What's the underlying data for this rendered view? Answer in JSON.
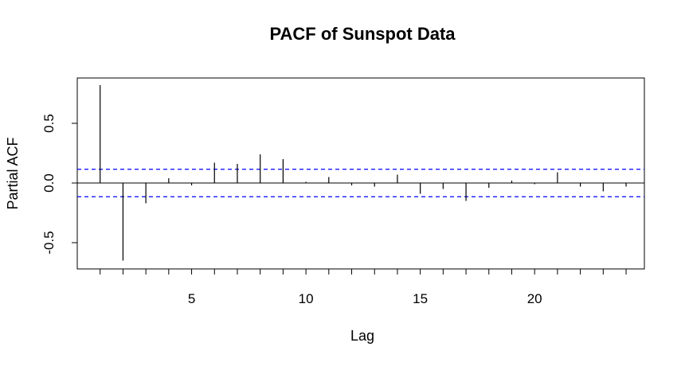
{
  "chart_data": {
    "type": "bar",
    "title": "PACF of Sunspot Data",
    "xlabel": "Lag",
    "ylabel": "Partial ACF",
    "xlim": [
      0,
      24.8
    ],
    "ylim": [
      -0.72,
      0.88
    ],
    "x_ticks": [
      5,
      10,
      15,
      20
    ],
    "x_tick_labels": [
      "5",
      "10",
      "15",
      "20"
    ],
    "y_ticks": [
      -0.5,
      0.0,
      0.5
    ],
    "y_tick_labels": [
      "-0.5",
      "0.0",
      "0.5"
    ],
    "lags": [
      1,
      2,
      3,
      4,
      5,
      6,
      7,
      8,
      9,
      10,
      11,
      12,
      13,
      14,
      15,
      16,
      17,
      18,
      19,
      20,
      21,
      22,
      23,
      24
    ],
    "values": [
      0.82,
      -0.65,
      -0.17,
      0.04,
      -0.02,
      0.17,
      0.16,
      0.24,
      0.2,
      0.01,
      0.05,
      -0.02,
      -0.03,
      0.07,
      -0.09,
      -0.05,
      -0.15,
      -0.04,
      0.02,
      -0.01,
      0.09,
      -0.03,
      -0.07,
      -0.03
    ],
    "confidence_bound": 0.115,
    "grid": false,
    "colors": {
      "bars": "#000000",
      "confidence": "#0000ff",
      "zero_line": "#000000"
    }
  }
}
